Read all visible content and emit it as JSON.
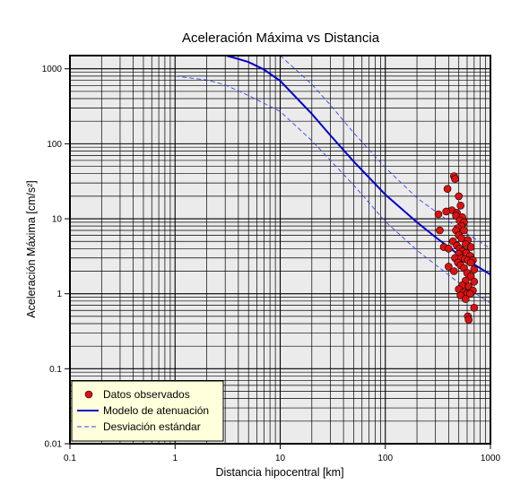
{
  "chart_data": {
    "type": "scatter",
    "title": "Aceleración Máxima vs Distancia",
    "xlabel": "Distancia hipocentral [km]",
    "ylabel": "Aceleración Máxima [cm/s²]",
    "xscale": "log",
    "yscale": "log",
    "xlim": [
      0.1,
      1000
    ],
    "ylim": [
      0.01,
      1500
    ],
    "grid": true,
    "background": "#ebebeb",
    "x_ticks": [
      "0.1",
      "1",
      "10",
      "100",
      "1000"
    ],
    "y_ticks": [
      "0.01",
      "0.1",
      "1",
      "10",
      "100",
      "1000"
    ],
    "legend": {
      "position": "bottom-left",
      "background": "#ffffdc",
      "entries": [
        {
          "label": "Datos observados",
          "marker": "circle",
          "color": "#dd1111"
        },
        {
          "label": "Modelo de atenuación",
          "line": "solid",
          "color": "#0000cc"
        },
        {
          "label": "Desviación estándar",
          "line": "dashed",
          "color": "#3344ee"
        }
      ]
    },
    "series": [
      {
        "name": "Datos observados",
        "kind": "scatter",
        "color": "#dd1111",
        "points": [
          [
            450,
            37
          ],
          [
            460,
            34
          ],
          [
            390,
            25
          ],
          [
            500,
            20
          ],
          [
            520,
            15
          ],
          [
            430,
            13
          ],
          [
            380,
            12.5
          ],
          [
            480,
            12
          ],
          [
            320,
            11.5
          ],
          [
            470,
            11
          ],
          [
            540,
            10.5
          ],
          [
            510,
            9.5
          ],
          [
            560,
            9
          ],
          [
            530,
            8
          ],
          [
            490,
            7.5
          ],
          [
            330,
            7
          ],
          [
            470,
            7
          ],
          [
            560,
            7
          ],
          [
            500,
            6
          ],
          [
            530,
            5.5
          ],
          [
            610,
            5.2
          ],
          [
            440,
            5
          ],
          [
            580,
            4.6
          ],
          [
            480,
            4.4
          ],
          [
            650,
            4.2
          ],
          [
            360,
            4.2
          ],
          [
            400,
            4
          ],
          [
            510,
            4
          ],
          [
            540,
            3.7
          ],
          [
            590,
            3.5
          ],
          [
            500,
            3.4
          ],
          [
            640,
            3.2
          ],
          [
            460,
            3
          ],
          [
            530,
            3
          ],
          [
            570,
            2.9
          ],
          [
            610,
            2.8
          ],
          [
            680,
            2.8
          ],
          [
            490,
            2.6
          ],
          [
            650,
            2.6
          ],
          [
            520,
            2.4
          ],
          [
            400,
            2.3
          ],
          [
            560,
            2.2
          ],
          [
            700,
            2.1
          ],
          [
            450,
            2
          ],
          [
            600,
            1.9
          ],
          [
            650,
            1.7
          ],
          [
            580,
            1.5
          ],
          [
            700,
            1.45
          ],
          [
            540,
            1.3
          ],
          [
            620,
            1.25
          ],
          [
            500,
            1.15
          ],
          [
            680,
            1.1
          ],
          [
            560,
            1.05
          ],
          [
            600,
            1
          ],
          [
            640,
            1
          ],
          [
            520,
            0.95
          ],
          [
            580,
            0.85
          ],
          [
            700,
            0.65
          ],
          [
            610,
            0.5
          ],
          [
            620,
            0.45
          ]
        ]
      },
      {
        "name": "Modelo de atenuación",
        "kind": "line",
        "style": "solid",
        "color": "#0000cc",
        "points": [
          [
            3.07,
            1500
          ],
          [
            4,
            1350
          ],
          [
            5,
            1230
          ],
          [
            7,
            980
          ],
          [
            10,
            690
          ],
          [
            20,
            250
          ],
          [
            30,
            130
          ],
          [
            50,
            58
          ],
          [
            100,
            21
          ],
          [
            200,
            9
          ],
          [
            300,
            5.7
          ],
          [
            500,
            3.3
          ],
          [
            1000,
            1.8
          ]
        ]
      },
      {
        "name": "Desviación estándar (superior)",
        "kind": "line",
        "style": "dashed",
        "color": "#3344ee",
        "points": [
          [
            10,
            1500
          ],
          [
            15,
            900
          ],
          [
            20,
            620
          ],
          [
            30,
            330
          ],
          [
            50,
            140
          ],
          [
            100,
            48
          ],
          [
            200,
            19
          ],
          [
            300,
            12.5
          ],
          [
            500,
            7.4
          ],
          [
            1000,
            4
          ]
        ]
      },
      {
        "name": "Desviación estándar (inferior)",
        "kind": "line",
        "style": "dashed",
        "color": "#3344ee",
        "points": [
          [
            1,
            800
          ],
          [
            2,
            710
          ],
          [
            3,
            610
          ],
          [
            5,
            440
          ],
          [
            10,
            270
          ],
          [
            20,
            110
          ],
          [
            50,
            28
          ],
          [
            100,
            9.2
          ],
          [
            200,
            3.8
          ],
          [
            500,
            1.4
          ],
          [
            1000,
            0.75
          ]
        ]
      }
    ]
  }
}
